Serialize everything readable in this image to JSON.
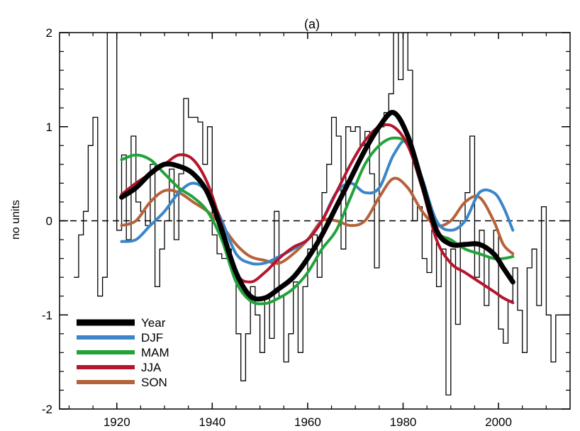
{
  "chart_data": {
    "type": "line",
    "title": "(a)",
    "xlabel": "",
    "ylabel": "no units",
    "xlim": [
      1908,
      2015
    ],
    "ylim": [
      -2,
      2
    ],
    "x_ticks": [
      1920,
      1940,
      1960,
      1980,
      2000
    ],
    "y_ticks": [
      -2,
      -1,
      0,
      1,
      2
    ],
    "grid": false,
    "zero_line": "dashed",
    "legend_position": "bottom-left",
    "annual_index": {
      "style": "step",
      "color": "#000000",
      "x": [
        1911,
        1912,
        1913,
        1914,
        1915,
        1916,
        1917,
        1918,
        1919,
        1920,
        1921,
        1922,
        1923,
        1924,
        1925,
        1926,
        1927,
        1928,
        1929,
        1930,
        1931,
        1932,
        1933,
        1934,
        1935,
        1936,
        1937,
        1938,
        1939,
        1940,
        1941,
        1942,
        1943,
        1944,
        1945,
        1946,
        1947,
        1948,
        1949,
        1950,
        1951,
        1952,
        1953,
        1954,
        1955,
        1956,
        1957,
        1958,
        1959,
        1960,
        1961,
        1962,
        1963,
        1964,
        1965,
        1966,
        1967,
        1968,
        1969,
        1970,
        1971,
        1972,
        1973,
        1974,
        1975,
        1976,
        1977,
        1978,
        1979,
        1980,
        1981,
        1982,
        1983,
        1984,
        1985,
        1986,
        1987,
        1988,
        1989,
        1990,
        1991,
        1992,
        1993,
        1994,
        1995,
        1996,
        1997,
        1998,
        1999,
        2000,
        2001,
        2002,
        2003,
        2004,
        2005,
        2006,
        2007,
        2008,
        2009,
        2010,
        2011,
        2012,
        2013
      ],
      "y": [
        -0.6,
        -0.15,
        0.1,
        0.8,
        1.1,
        -0.8,
        -0.6,
        2.0,
        2.0,
        -0.1,
        0.7,
        -0.2,
        0.9,
        0.2,
        0.1,
        -0.05,
        0.6,
        -0.7,
        -0.3,
        0.0,
        0.55,
        -0.2,
        0.5,
        1.3,
        1.1,
        1.1,
        1.05,
        0.6,
        1.0,
        -0.15,
        -0.35,
        -0.4,
        -0.3,
        -0.5,
        -1.2,
        -1.7,
        -1.2,
        -0.7,
        -1.0,
        -1.4,
        -0.8,
        -1.25,
        0.1,
        -0.8,
        -1.5,
        -1.2,
        -0.65,
        -1.4,
        -0.7,
        -0.3,
        -0.15,
        -0.6,
        0.3,
        0.6,
        1.1,
        0.9,
        -0.3,
        1.0,
        0.95,
        1.0,
        0.8,
        0.95,
        0.5,
        -0.5,
        1.0,
        1.15,
        1.35,
        2.0,
        1.5,
        2.0,
        1.6,
        0.0,
        0.15,
        -0.4,
        -0.55,
        -0.1,
        -0.7,
        -0.3,
        -1.85,
        -0.3,
        -1.1,
        0.0,
        0.3,
        0.9,
        -0.6,
        -0.1,
        -0.9,
        -0.4,
        -0.1,
        -1.15,
        -1.3,
        -0.85,
        -0.5,
        -0.95,
        -1.4,
        -0.5,
        -0.3,
        -0.9,
        0.15,
        -1.0,
        -1.5,
        -1.0,
        -1.0
      ]
    },
    "series": [
      {
        "name": "Year",
        "color": "#000000",
        "width": 7,
        "x": [
          1921,
          1924,
          1927,
          1930,
          1933,
          1936,
          1939,
          1942,
          1945,
          1948,
          1951,
          1954,
          1957,
          1960,
          1963,
          1966,
          1969,
          1972,
          1975,
          1978,
          1981,
          1984,
          1987,
          1990,
          1993,
          1996,
          1999,
          2001,
          2003
        ],
        "y": [
          0.25,
          0.35,
          0.5,
          0.6,
          0.58,
          0.5,
          0.3,
          -0.1,
          -0.55,
          -0.8,
          -0.82,
          -0.72,
          -0.6,
          -0.4,
          -0.15,
          0.15,
          0.45,
          0.75,
          1.0,
          1.15,
          0.9,
          0.4,
          -0.1,
          -0.25,
          -0.25,
          -0.25,
          -0.35,
          -0.5,
          -0.65
        ]
      },
      {
        "name": "DJF",
        "color": "#3a86c8",
        "width": 4,
        "x": [
          1921,
          1924,
          1927,
          1930,
          1933,
          1936,
          1939,
          1942,
          1945,
          1948,
          1951,
          1954,
          1957,
          1960,
          1963,
          1966,
          1969,
          1972,
          1975,
          1978,
          1981,
          1984,
          1987,
          1990,
          1993,
          1996,
          1999,
          2001,
          2003
        ],
        "y": [
          -0.22,
          -0.2,
          -0.05,
          0.1,
          0.3,
          0.4,
          0.3,
          0.0,
          -0.35,
          -0.45,
          -0.45,
          -0.38,
          -0.3,
          -0.2,
          0.0,
          0.3,
          0.4,
          0.3,
          0.35,
          0.7,
          0.85,
          0.45,
          0.0,
          -0.1,
          0.0,
          0.3,
          0.3,
          0.15,
          -0.1
        ]
      },
      {
        "name": "MAM",
        "color": "#22a33a",
        "width": 4,
        "x": [
          1921,
          1924,
          1927,
          1930,
          1933,
          1936,
          1939,
          1942,
          1945,
          1948,
          1951,
          1954,
          1957,
          1960,
          1963,
          1966,
          1969,
          1972,
          1975,
          1978,
          1981,
          1984,
          1987,
          1990,
          1993,
          1996,
          1999,
          2001,
          2003
        ],
        "y": [
          0.65,
          0.7,
          0.65,
          0.5,
          0.35,
          0.25,
          0.1,
          -0.2,
          -0.65,
          -0.85,
          -0.88,
          -0.82,
          -0.72,
          -0.55,
          -0.3,
          -0.1,
          0.25,
          0.6,
          0.8,
          0.88,
          0.8,
          0.35,
          -0.1,
          -0.2,
          -0.3,
          -0.35,
          -0.4,
          -0.4,
          -0.38
        ]
      },
      {
        "name": "JJA",
        "color": "#b5152d",
        "width": 4,
        "x": [
          1921,
          1924,
          1927,
          1930,
          1933,
          1936,
          1939,
          1942,
          1945,
          1948,
          1951,
          1954,
          1957,
          1960,
          1963,
          1966,
          1969,
          1972,
          1975,
          1978,
          1981,
          1984,
          1987,
          1990,
          1993,
          1996,
          1999,
          2001,
          2003
        ],
        "y": [
          0.28,
          0.4,
          0.5,
          0.6,
          0.7,
          0.65,
          0.4,
          -0.05,
          -0.55,
          -0.65,
          -0.55,
          -0.4,
          -0.28,
          -0.2,
          0.0,
          0.3,
          0.6,
          0.85,
          1.0,
          1.0,
          0.8,
          0.35,
          -0.2,
          -0.45,
          -0.55,
          -0.65,
          -0.75,
          -0.82,
          -0.87
        ]
      },
      {
        "name": "SON",
        "color": "#b5623a",
        "width": 4,
        "x": [
          1921,
          1924,
          1927,
          1930,
          1933,
          1936,
          1939,
          1942,
          1945,
          1948,
          1951,
          1954,
          1957,
          1960,
          1963,
          1966,
          1969,
          1972,
          1975,
          1978,
          1981,
          1984,
          1987,
          1990,
          1993,
          1996,
          1999,
          2001,
          2003
        ],
        "y": [
          -0.05,
          0.0,
          0.2,
          0.32,
          0.3,
          0.2,
          0.1,
          -0.05,
          -0.25,
          -0.38,
          -0.42,
          -0.45,
          -0.35,
          -0.2,
          0.0,
          0.0,
          -0.05,
          0.0,
          0.25,
          0.45,
          0.35,
          0.1,
          -0.05,
          0.0,
          0.2,
          0.25,
          0.0,
          -0.25,
          -0.35
        ]
      }
    ]
  }
}
